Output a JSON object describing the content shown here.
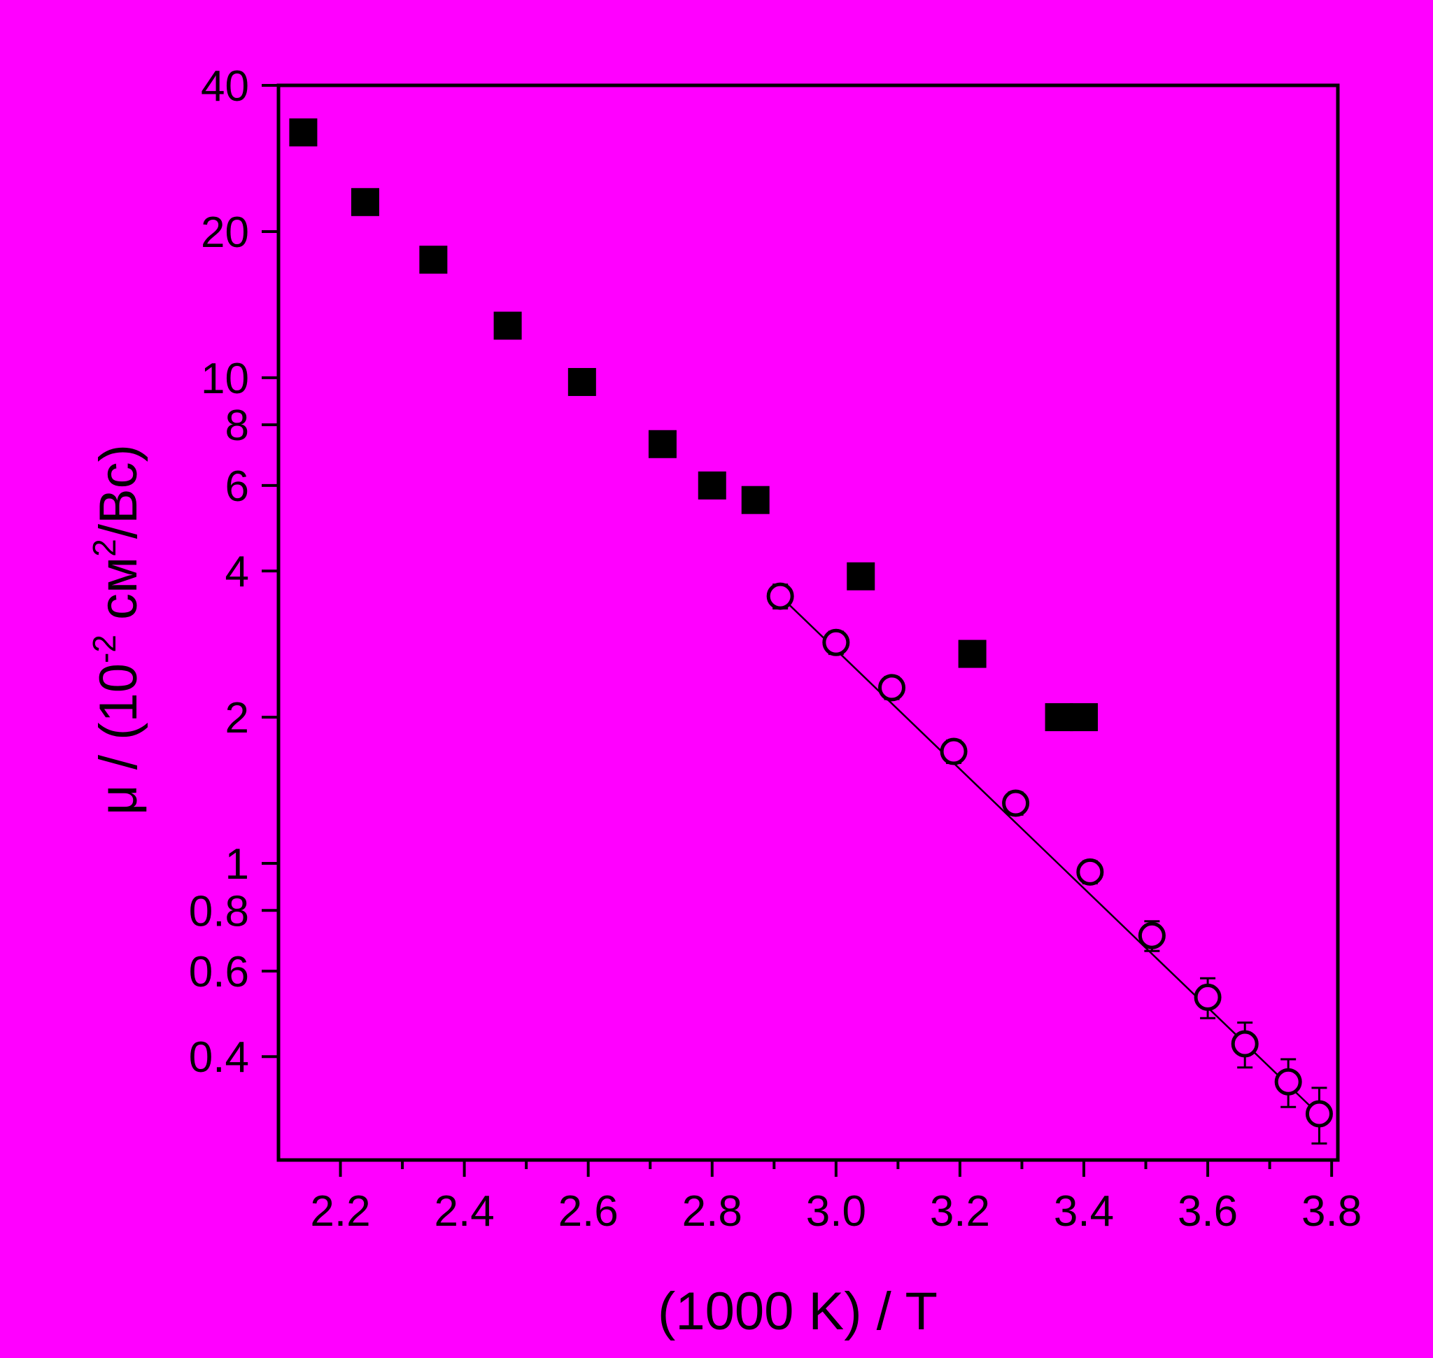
{
  "colors": {
    "background": "#FF00FF",
    "foreground": "#000000"
  },
  "chart_data": {
    "type": "scatter",
    "title": "",
    "xlabel": "(1000 K) / T",
    "ylabel": {
      "prefix": "μ / (10",
      "exp1": "-2",
      "middle": " см",
      "exp2": "2",
      "suffix": "/Вс)"
    },
    "x_scale": "linear",
    "y_scale": "log",
    "xlim": [
      2.1,
      3.81
    ],
    "ylim": [
      0.245,
      40
    ],
    "x_ticks": [
      2.2,
      2.4,
      2.6,
      2.8,
      3.0,
      3.2,
      3.4,
      3.6,
      3.8
    ],
    "x_tick_labels": [
      "2.2",
      "2.4",
      "2.6",
      "2.8",
      "3.0",
      "3.2",
      "3.4",
      "3.6",
      "3.8"
    ],
    "x_minor_ticks": [
      2.3,
      2.5,
      2.7,
      2.9,
      3.1,
      3.3,
      3.5,
      3.7
    ],
    "y_ticks": [
      0.4,
      0.6,
      0.8,
      1,
      2,
      4,
      6,
      8,
      10,
      20,
      40
    ],
    "y_tick_labels": [
      "0.4",
      "0.6",
      "0.8",
      "1",
      "2",
      "4",
      "6",
      "8",
      "10",
      "20",
      "40"
    ],
    "grid": false,
    "legend": "none",
    "series": [
      {
        "marker": "filled-square",
        "x": [
          2.14,
          2.24,
          2.35,
          2.47,
          2.59,
          2.72,
          2.8,
          2.87,
          3.04,
          3.22,
          3.36,
          3.4
        ],
        "y": [
          32,
          23,
          17.5,
          12.8,
          9.8,
          7.3,
          6.0,
          5.6,
          3.9,
          2.7,
          2.0,
          2.0
        ]
      },
      {
        "marker": "open-circle",
        "x": [
          2.91,
          3.0,
          3.09,
          3.19,
          3.29,
          3.41,
          3.51,
          3.6,
          3.66,
          3.73,
          3.78
        ],
        "y": [
          3.55,
          2.85,
          2.3,
          1.7,
          1.33,
          0.96,
          0.71,
          0.53,
          0.425,
          0.355,
          0.305
        ],
        "error_minus": [
          0.2,
          0.15,
          0.12,
          0.09,
          0.07,
          0.05,
          0.05,
          0.05,
          0.045,
          0.04,
          0.04
        ],
        "error_plus": [
          0.2,
          0.15,
          0.12,
          0.09,
          0.07,
          0.05,
          0.05,
          0.05,
          0.045,
          0.04,
          0.04
        ]
      }
    ],
    "fit_line": {
      "x": [
        2.91,
        3.79
      ],
      "y": [
        3.55,
        0.295
      ]
    }
  }
}
